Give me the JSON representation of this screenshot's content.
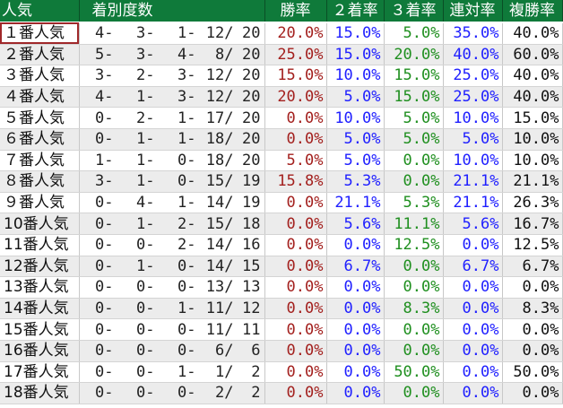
{
  "headers": [
    "人気",
    "着別度数",
    "勝率",
    "２着率",
    "３着率",
    "連対率",
    "複勝率"
  ],
  "colors": {
    "header_bg": "#0f7a3a",
    "win": "#a3201e",
    "second": "#2020ff",
    "third": "#1f8f1f",
    "rentai": "#2020ff",
    "fukusho": "#111111"
  },
  "rows": [
    {
      "pop": "１番人気",
      "record": [
        "4-",
        "3-",
        "1-",
        "12/",
        "20"
      ],
      "win": "20.0%",
      "second": "15.0%",
      "third": "5.0%",
      "rentai": "35.0%",
      "fukusho": "40.0%"
    },
    {
      "pop": "２番人気",
      "record": [
        "5-",
        "3-",
        "4-",
        "8/",
        "20"
      ],
      "win": "25.0%",
      "second": "15.0%",
      "third": "20.0%",
      "rentai": "40.0%",
      "fukusho": "60.0%"
    },
    {
      "pop": "３番人気",
      "record": [
        "3-",
        "2-",
        "3-",
        "12/",
        "20"
      ],
      "win": "15.0%",
      "second": "10.0%",
      "third": "15.0%",
      "rentai": "25.0%",
      "fukusho": "40.0%"
    },
    {
      "pop": "４番人気",
      "record": [
        "4-",
        "1-",
        "3-",
        "12/",
        "20"
      ],
      "win": "20.0%",
      "second": "5.0%",
      "third": "15.0%",
      "rentai": "25.0%",
      "fukusho": "40.0%"
    },
    {
      "pop": "５番人気",
      "record": [
        "0-",
        "2-",
        "1-",
        "17/",
        "20"
      ],
      "win": "0.0%",
      "second": "10.0%",
      "third": "5.0%",
      "rentai": "10.0%",
      "fukusho": "15.0%"
    },
    {
      "pop": "６番人気",
      "record": [
        "0-",
        "1-",
        "1-",
        "18/",
        "20"
      ],
      "win": "0.0%",
      "second": "5.0%",
      "third": "5.0%",
      "rentai": "5.0%",
      "fukusho": "10.0%"
    },
    {
      "pop": "７番人気",
      "record": [
        "1-",
        "1-",
        "0-",
        "18/",
        "20"
      ],
      "win": "5.0%",
      "second": "5.0%",
      "third": "0.0%",
      "rentai": "10.0%",
      "fukusho": "10.0%"
    },
    {
      "pop": "８番人気",
      "record": [
        "3-",
        "1-",
        "0-",
        "15/",
        "19"
      ],
      "win": "15.8%",
      "second": "5.3%",
      "third": "0.0%",
      "rentai": "21.1%",
      "fukusho": "21.1%"
    },
    {
      "pop": "９番人気",
      "record": [
        "0-",
        "4-",
        "1-",
        "14/",
        "19"
      ],
      "win": "0.0%",
      "second": "21.1%",
      "third": "5.3%",
      "rentai": "21.1%",
      "fukusho": "26.3%"
    },
    {
      "pop": "10番人気",
      "record": [
        "0-",
        "1-",
        "2-",
        "15/",
        "18"
      ],
      "win": "0.0%",
      "second": "5.6%",
      "third": "11.1%",
      "rentai": "5.6%",
      "fukusho": "16.7%"
    },
    {
      "pop": "11番人気",
      "record": [
        "0-",
        "0-",
        "2-",
        "14/",
        "16"
      ],
      "win": "0.0%",
      "second": "0.0%",
      "third": "12.5%",
      "rentai": "0.0%",
      "fukusho": "12.5%"
    },
    {
      "pop": "12番人気",
      "record": [
        "0-",
        "1-",
        "0-",
        "14/",
        "15"
      ],
      "win": "0.0%",
      "second": "6.7%",
      "third": "0.0%",
      "rentai": "6.7%",
      "fukusho": "6.7%"
    },
    {
      "pop": "13番人気",
      "record": [
        "0-",
        "0-",
        "0-",
        "13/",
        "13"
      ],
      "win": "0.0%",
      "second": "0.0%",
      "third": "0.0%",
      "rentai": "0.0%",
      "fukusho": "0.0%"
    },
    {
      "pop": "14番人気",
      "record": [
        "0-",
        "0-",
        "1-",
        "11/",
        "12"
      ],
      "win": "0.0%",
      "second": "0.0%",
      "third": "8.3%",
      "rentai": "0.0%",
      "fukusho": "8.3%"
    },
    {
      "pop": "15番人気",
      "record": [
        "0-",
        "0-",
        "0-",
        "11/",
        "11"
      ],
      "win": "0.0%",
      "second": "0.0%",
      "third": "0.0%",
      "rentai": "0.0%",
      "fukusho": "0.0%"
    },
    {
      "pop": "16番人気",
      "record": [
        "0-",
        "0-",
        "0-",
        "6/",
        "6"
      ],
      "win": "0.0%",
      "second": "0.0%",
      "third": "0.0%",
      "rentai": "0.0%",
      "fukusho": "0.0%"
    },
    {
      "pop": "17番人気",
      "record": [
        "0-",
        "0-",
        "1-",
        "1/",
        "2"
      ],
      "win": "0.0%",
      "second": "0.0%",
      "third": "50.0%",
      "rentai": "0.0%",
      "fukusho": "50.0%"
    },
    {
      "pop": "18番人気",
      "record": [
        "0-",
        "0-",
        "0-",
        "2/",
        "2"
      ],
      "win": "0.0%",
      "second": "0.0%",
      "third": "0.0%",
      "rentai": "0.0%",
      "fukusho": "0.0%"
    }
  ]
}
